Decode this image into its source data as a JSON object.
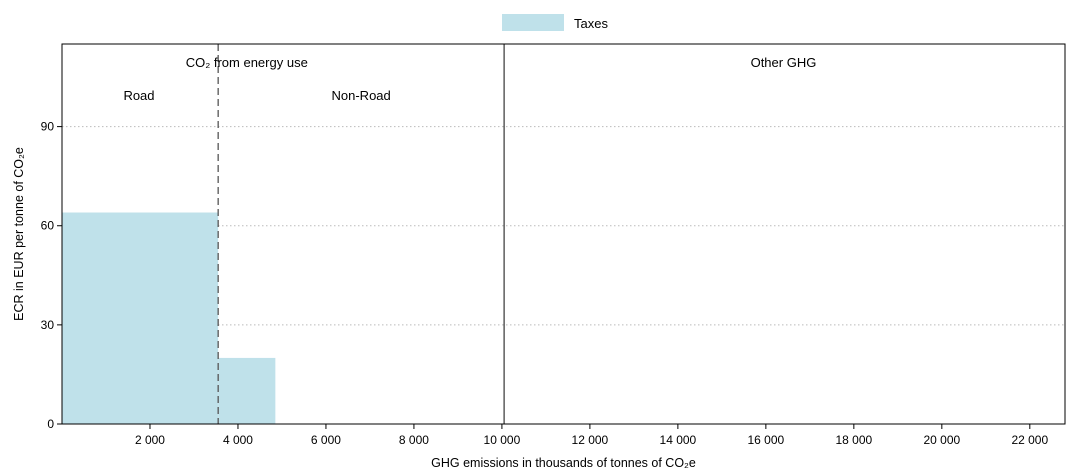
{
  "chart_data": {
    "type": "bar",
    "subtype": "variable-width step chart",
    "xlabel": "GHG emissions in thousands of tonnes of CO₂e",
    "ylabel": "ECR in EUR per tonne of CO₂e",
    "xlim": [
      0,
      22800
    ],
    "ylim": [
      0,
      115
    ],
    "x_ticks": [
      2000,
      4000,
      6000,
      8000,
      10000,
      12000,
      14000,
      16000,
      18000,
      20000,
      22000
    ],
    "x_tick_labels": [
      "2 000",
      "4 000",
      "6 000",
      "8 000",
      "10 000",
      "12 000",
      "14 000",
      "16 000",
      "18 000",
      "20 000",
      "22 000"
    ],
    "y_ticks": [
      0,
      30,
      60,
      90
    ],
    "y_tick_labels": [
      "0",
      "30",
      "60",
      "90"
    ],
    "grid": "horizontal dotted",
    "legend_position": "top-center",
    "series": [
      {
        "name": "Taxes",
        "color": "#bfe1ea",
        "segments": [
          {
            "x_start": 0,
            "x_end": 3550,
            "value": 64
          },
          {
            "x_start": 3550,
            "x_end": 4850,
            "value": 20
          }
        ]
      }
    ],
    "dividers": [
      {
        "x": 3550,
        "style": "dashed"
      },
      {
        "x": 10050,
        "style": "solid"
      }
    ],
    "annotations": [
      {
        "text": "CO₂ from energy use",
        "x": 4200,
        "y": 108
      },
      {
        "text": "Road",
        "x": 1750,
        "y": 98
      },
      {
        "text": "Non-Road",
        "x": 6800,
        "y": 98
      },
      {
        "text": "Other GHG",
        "x": 16400,
        "y": 108
      }
    ]
  }
}
